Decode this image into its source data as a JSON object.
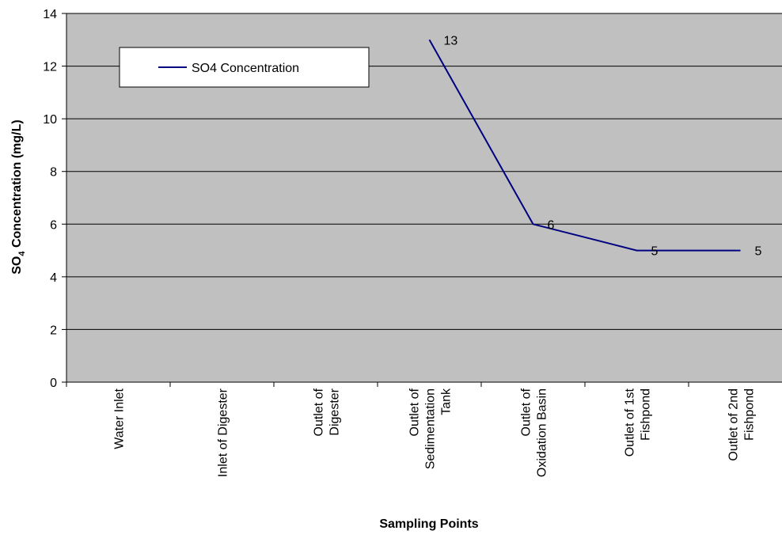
{
  "chart_data": {
    "type": "line",
    "xlabel": "Sampling Points",
    "ylabel_main": "SO",
    "ylabel_sub": "4",
    "ylabel_rest": " Concentration (mg/L)",
    "ylim": [
      0,
      14
    ],
    "yticks": [
      0,
      2,
      4,
      6,
      8,
      10,
      12,
      14
    ],
    "grid": true,
    "legend_position": "top-left",
    "categories": [
      [
        "Water Inlet"
      ],
      [
        "Inlet of Digester"
      ],
      [
        "Outlet of",
        "Digester"
      ],
      [
        "Outlet of",
        "Sedimentation",
        "Tank"
      ],
      [
        "Outlet of",
        "Oxidation Basin"
      ],
      [
        "Outlet of 1st",
        "Fishpond"
      ],
      [
        "Outlet of 2nd",
        "Fishpond"
      ]
    ],
    "series": [
      {
        "name": "SO4 Concentration",
        "color": "#000080",
        "values": [
          null,
          null,
          null,
          13,
          6,
          5,
          5
        ],
        "labels": [
          null,
          null,
          null,
          "13",
          "6",
          "5",
          "5"
        ]
      }
    ],
    "plot_background": "#c0c0c0"
  }
}
